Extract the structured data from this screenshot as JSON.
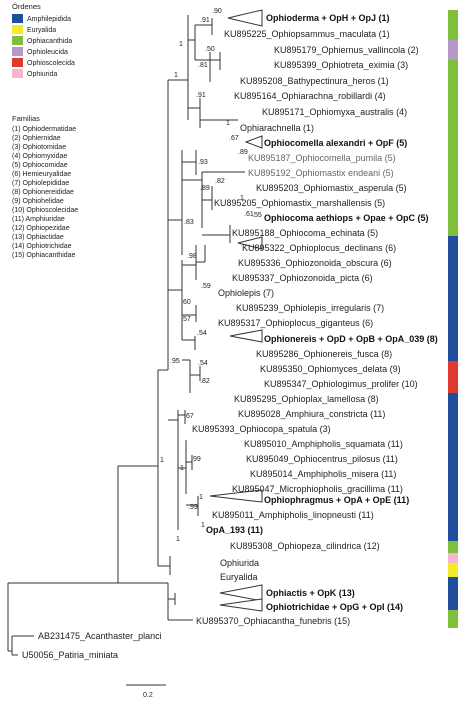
{
  "legend_orders": {
    "title": "Órdenes",
    "items": [
      {
        "label": "Amphilepidida",
        "color": "#1f4e9c"
      },
      {
        "label": "Euryalida",
        "color": "#f3ea2a"
      },
      {
        "label": "Ophiacanthida",
        "color": "#7fbf3c"
      },
      {
        "label": "Ophioleucida",
        "color": "#b59ac6"
      },
      {
        "label": "Ophioscolecida",
        "color": "#e03a2f"
      },
      {
        "label": "Ophiurida",
        "color": "#f4b6cf"
      }
    ]
  },
  "legend_families": {
    "title": "Familias",
    "items": [
      "(1) Ophiodermatidae",
      "(2) Ophiernidae",
      "(3) Ophiotomidae",
      "(4) Ophiomyxidae",
      "(5) Ophiocomidae",
      "(6) Hemieuryalidae",
      "(7) Ophiolepididae",
      "(8) Ophionereididae",
      "(9) Ophiohelidae",
      "(10) Ophioscolecidae",
      "(11) Amphiuridae",
      "(12) Ophiopezidae",
      "(13) Ophiactidae",
      "(14) Ophiotrichidae",
      "(15) Ophiacanthidae"
    ]
  },
  "tips": [
    {
      "label": "Ophioderma + OpH + OpJ (1)",
      "style": "bold"
    },
    {
      "label": "KU895225_Ophiopsammus_maculata (1)",
      "style": "normal"
    },
    {
      "label": "KU895179_Ophiernus_vallincola (2)",
      "style": "normal"
    },
    {
      "label": "KU895399_Ophiotreta_eximia (3)",
      "style": "normal"
    },
    {
      "label": "KU895208_Bathypectinura_heros (1)",
      "style": "normal"
    },
    {
      "label": "KU895164_Ophiarachna_robillardi (4)",
      "style": "normal"
    },
    {
      "label": "KU895171_Ophiomyxa_australis (4)",
      "style": "normal"
    },
    {
      "label": "Ophiarachnella (1)",
      "style": "normal"
    },
    {
      "label": "Ophiocomella alexandri + OpF (5)",
      "style": "bold"
    },
    {
      "label": "KU895187_Ophiocomella_pumila (5)",
      "style": "grey"
    },
    {
      "label": "KU895192_Ophiomastix endeani (5)",
      "style": "grey"
    },
    {
      "label": "KU895203_Ophiomastix_asperula (5)",
      "style": "normal"
    },
    {
      "label": "KU895205_Ophiomastix_marshallensis (5)",
      "style": "normal"
    },
    {
      "label": "Ophiocoma aethiops + Opae + OpC (5)",
      "style": "bold"
    },
    {
      "label": "KU895188_Ophiocoma_echinata (5)",
      "style": "normal"
    },
    {
      "label": "KU895322_Ophioplocus_declinans (6)",
      "style": "normal"
    },
    {
      "label": "KU895336_Ophiozonoida_obscura (6)",
      "style": "normal"
    },
    {
      "label": "KU895337_Ophiozonoida_picta (6)",
      "style": "normal"
    },
    {
      "label": "Ophiolepis (7)",
      "style": "normal"
    },
    {
      "label": "KU895239_Ophiolepis_irregularis (7)",
      "style": "normal"
    },
    {
      "label": "KU895317_Ophioplocus_giganteus (6)",
      "style": "normal"
    },
    {
      "label": "Ophionereis + OpD + OpB + OpA_039 (8)",
      "style": "bold"
    },
    {
      "label": "KU895286_Ophionereis_fusca (8)",
      "style": "normal"
    },
    {
      "label": "KU895350_Ophiomyces_delata (9)",
      "style": "normal"
    },
    {
      "label": "KU895347_Ophiologimus_prolifer (10)",
      "style": "normal"
    },
    {
      "label": "KU895295_Ophioplax_lamellosa (8)",
      "style": "normal"
    },
    {
      "label": "KU895028_Amphiura_constricta (11)",
      "style": "normal"
    },
    {
      "label": "KU895393_Ophiocopa_spatula (3)",
      "style": "normal"
    },
    {
      "label": "KU895010_Amphipholis_squamata (11)",
      "style": "normal"
    },
    {
      "label": "KU895049_Ophiocentrus_pilosus (11)",
      "style": "normal"
    },
    {
      "label": "KU895014_Amphipholis_misera (11)",
      "style": "normal"
    },
    {
      "label": "KU895047_Microphiopholis_gracillima (11)",
      "style": "normal"
    },
    {
      "label": "Ophiophragmus + OpA + OpE (11)",
      "style": "bold"
    },
    {
      "label": "KU895011_Amphipholis_linopneusti (11)",
      "style": "normal"
    },
    {
      "label": "OpA_193 (11)",
      "style": "bold"
    },
    {
      "label": "KU895308_Ophiopeza_cilindrica (12)",
      "style": "normal"
    },
    {
      "label": "Ophiurida",
      "style": "normal"
    },
    {
      "label": "Euryalida",
      "style": "normal"
    },
    {
      "label": "Ophiactis + OpK (13)",
      "style": "bold"
    },
    {
      "label": "Ophiotrichidae + OpG + OpI (14)",
      "style": "bold"
    },
    {
      "label": "KU895370_Ophiacantha_funebris (15)",
      "style": "normal"
    },
    {
      "label": "AB231475_Acanthaster_planci",
      "style": "normal"
    },
    {
      "label": "U50056_Patiria_miniata",
      "style": "normal"
    }
  ],
  "support_values": [
    ".90",
    "1",
    ".91",
    ".81",
    ".50",
    "1",
    ".91",
    "1",
    ".67",
    ".89",
    ".93",
    "1",
    ".89",
    ".61",
    ".55",
    ".82",
    ".83",
    ".98",
    ".57",
    ".59",
    ".60",
    ".54",
    ".54",
    ".82",
    ".95",
    ".67",
    ".99",
    "1",
    "1",
    ".99",
    "1",
    "1",
    "1"
  ],
  "scale_bar": {
    "label": "0.2"
  },
  "order_bar_colors": {
    "green": "#7fbf3c",
    "purple": "#b59ac6",
    "blue": "#1f4e9c",
    "red": "#e03a2f",
    "pink": "#f4b6cf",
    "yellow": "#f3ea2a"
  }
}
